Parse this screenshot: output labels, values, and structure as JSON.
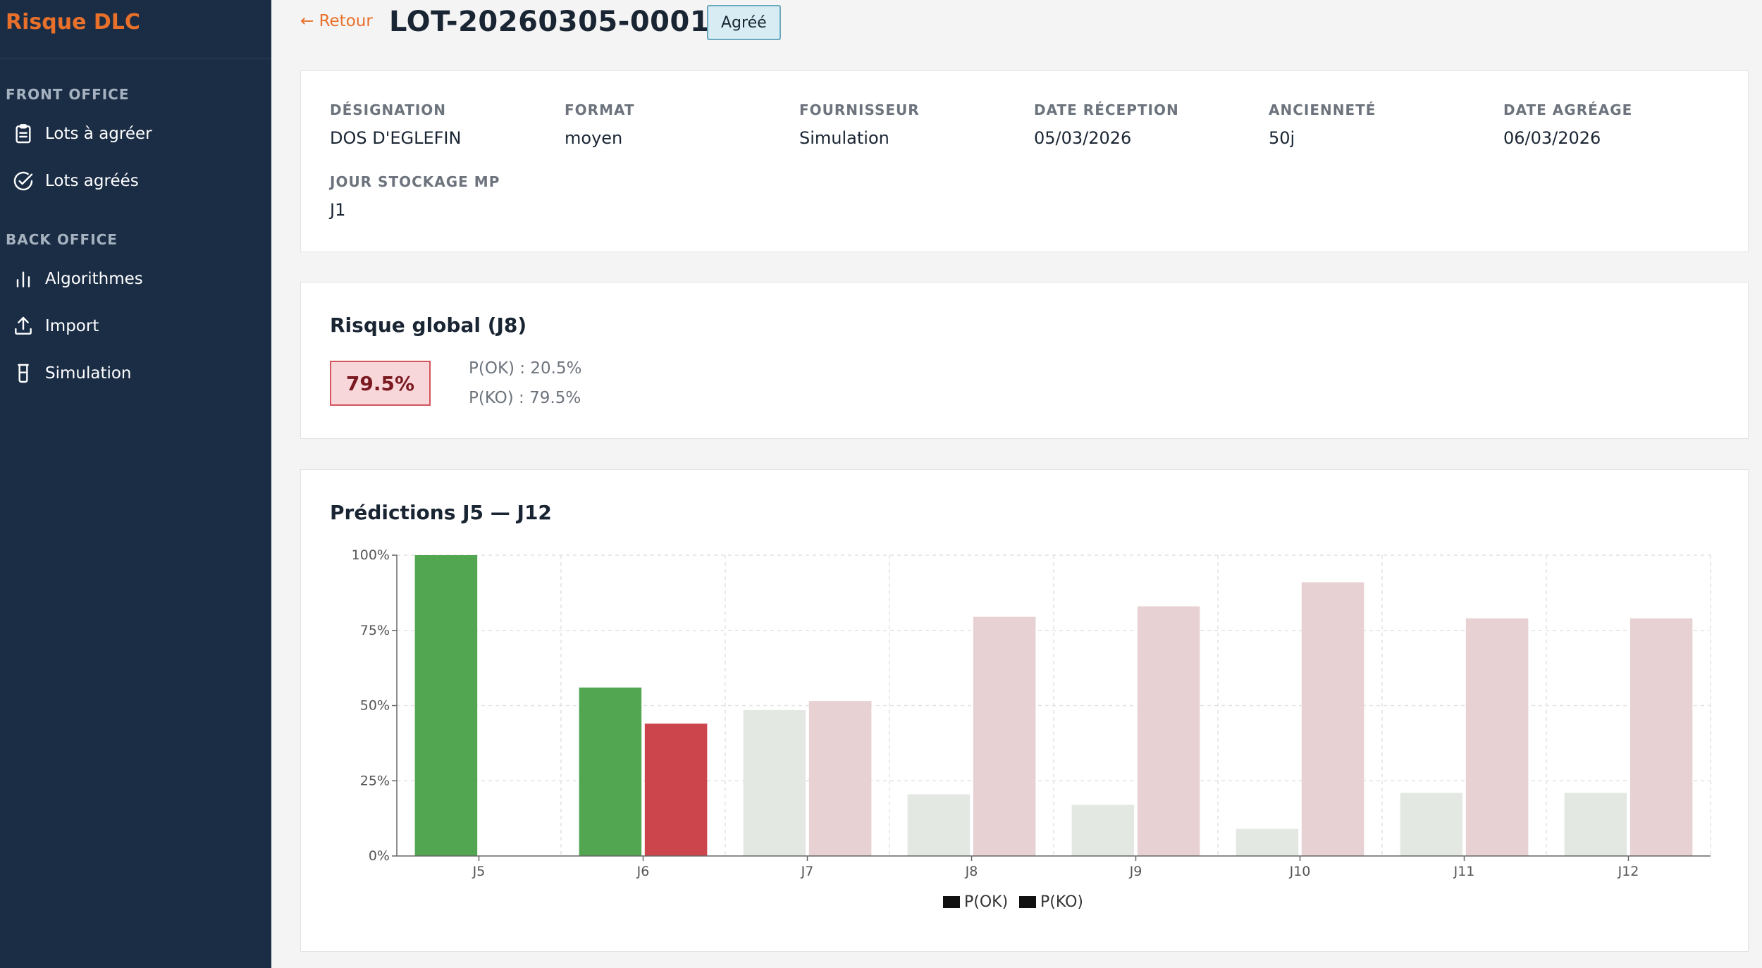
{
  "app": {
    "brand": "Risque DLC"
  },
  "sidebar": {
    "front_office_label": "FRONT OFFICE",
    "back_office_label": "BACK OFFICE",
    "items": [
      {
        "label": "Lots à agréer",
        "icon": "clipboard-icon"
      },
      {
        "label": "Lots agréés",
        "icon": "check-circle-icon"
      },
      {
        "label": "Algorithmes",
        "icon": "bar-chart-icon"
      },
      {
        "label": "Import",
        "icon": "upload-icon"
      },
      {
        "label": "Simulation",
        "icon": "beaker-icon"
      }
    ]
  },
  "header": {
    "back_label": "← Retour",
    "lot_id": "LOT-20260305-0001",
    "status": "Agréé"
  },
  "lot_info": {
    "fields": [
      {
        "label": "Désignation",
        "value": "DOS D'EGLEFIN"
      },
      {
        "label": "Format",
        "value": "moyen"
      },
      {
        "label": "Fournisseur",
        "value": "Simulation"
      },
      {
        "label": "Date réception",
        "value": "05/03/2026"
      },
      {
        "label": "Ancienneté",
        "value": "50j"
      },
      {
        "label": "Date agréage",
        "value": "06/03/2026"
      },
      {
        "label": "Jour stockage MP",
        "value": "J1"
      }
    ]
  },
  "risk": {
    "title": "Risque global (J8)",
    "value": "79.5%",
    "p_ok": "P(OK) : 20.5%",
    "p_ko": "P(KO) : 79.5%"
  },
  "chart_section": {
    "title": "Prédictions J5 — J12"
  },
  "colors": {
    "ok_active": "#52a651",
    "ko_active": "#cc444c",
    "ok_faded": "#e4e8e3",
    "ko_faded": "#e7d1d3",
    "accent": "#e8702a"
  },
  "chart_data": {
    "type": "bar",
    "categories": [
      "J5",
      "J6",
      "J7",
      "J8",
      "J9",
      "J10",
      "J11",
      "J12"
    ],
    "series": [
      {
        "name": "P(OK)",
        "values": [
          100,
          56,
          48.5,
          20.5,
          17,
          9,
          21,
          21
        ]
      },
      {
        "name": "P(KO)",
        "values": [
          0,
          44,
          51.5,
          79.5,
          83,
          91,
          79,
          79
        ]
      }
    ],
    "highlighted_categories": [
      "J5",
      "J6"
    ],
    "yticks": [
      "0%",
      "25%",
      "50%",
      "75%",
      "100%"
    ],
    "ylim": [
      0,
      100
    ],
    "grid": true,
    "legend_position": "bottom-center"
  }
}
